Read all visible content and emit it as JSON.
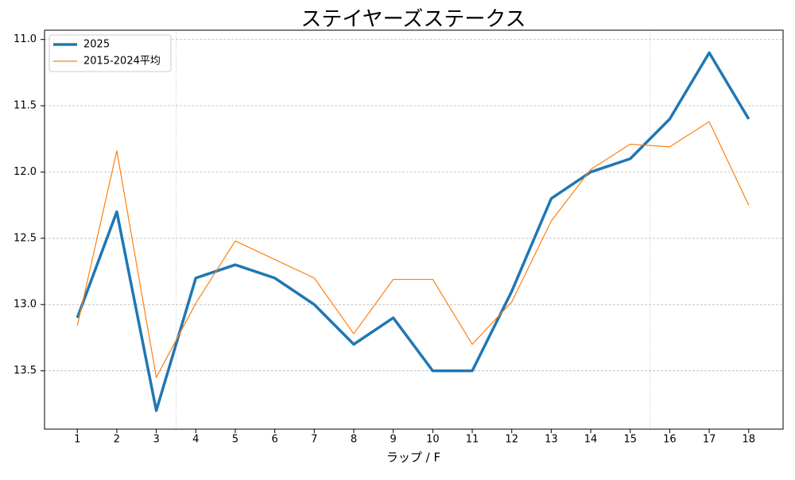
{
  "chart_data": {
    "type": "line",
    "title": "ステイヤーズステークス",
    "xlabel": "ラップ / F",
    "x": [
      1,
      2,
      3,
      4,
      5,
      6,
      7,
      8,
      9,
      10,
      11,
      12,
      13,
      14,
      15,
      16,
      17,
      18
    ],
    "series": [
      {
        "name": "2025",
        "color": "#1f77b4",
        "width": 3.5,
        "values": [
          13.1,
          12.3,
          13.8,
          12.8,
          12.7,
          12.8,
          13.0,
          13.3,
          13.1,
          13.5,
          13.5,
          12.9,
          12.2,
          12.0,
          11.9,
          11.6,
          11.1,
          11.6
        ]
      },
      {
        "name": "2015-2024平均",
        "color": "#ff7f0e",
        "width": 1.2,
        "values": [
          13.16,
          11.84,
          13.55,
          12.99,
          12.52,
          12.66,
          12.8,
          13.22,
          12.81,
          12.81,
          13.3,
          12.98,
          12.37,
          11.98,
          11.79,
          11.81,
          11.62,
          12.25
        ]
      }
    ],
    "xlim": [
      0.17,
      18.87
    ],
    "xticks": [
      1,
      2,
      3,
      4,
      5,
      6,
      7,
      8,
      9,
      10,
      11,
      12,
      13,
      14,
      15,
      16,
      17,
      18
    ],
    "ylim": [
      10.93,
      13.94
    ],
    "y_inverted": true,
    "yticks": [
      {
        "value": 11,
        "label": "11.0"
      },
      {
        "value": 11.5,
        "label": "11.5"
      },
      {
        "value": 12,
        "label": "12.0"
      },
      {
        "value": 12.5,
        "label": "12.5"
      },
      {
        "value": 13,
        "label": "13.0"
      },
      {
        "value": 13.5,
        "label": "13.5"
      }
    ],
    "vlines": [
      3.5,
      15.5
    ],
    "grid": true,
    "legend": "upper-left"
  }
}
